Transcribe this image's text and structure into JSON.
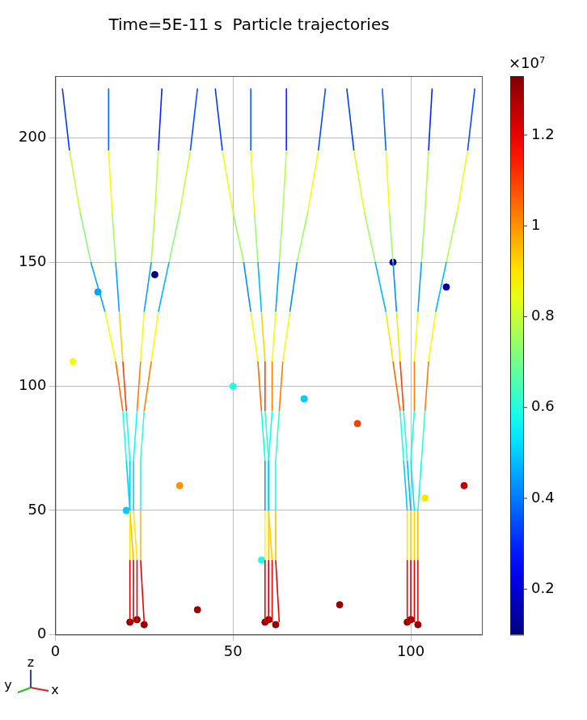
{
  "chart_data": {
    "type": "line",
    "title": "Time=5E-11 s  Particle trajectories",
    "xlim": [
      0,
      120
    ],
    "xticks": [
      0,
      50,
      100
    ],
    "ylim": [
      0,
      225
    ],
    "yticks": [
      0,
      50,
      100,
      150,
      200
    ],
    "grid": true,
    "triad": [
      "x",
      "y",
      "z"
    ],
    "series": [
      {
        "x": [
          2,
          4,
          7,
          10,
          14,
          17,
          19,
          20,
          21,
          21,
          21
        ],
        "y": [
          220,
          195,
          170,
          150,
          130,
          110,
          90,
          70,
          50,
          30,
          5
        ],
        "speed": [
          0.15,
          0.5,
          1.1,
          0.35,
          0.55,
          1.2,
          0.9,
          0.3,
          0.7,
          1.1,
          1.3
        ]
      },
      {
        "x": [
          15,
          15,
          16,
          17,
          18,
          19,
          20,
          21,
          21,
          22,
          22
        ],
        "y": [
          220,
          195,
          170,
          150,
          130,
          110,
          90,
          70,
          50,
          30,
          5
        ],
        "speed": [
          0.2,
          0.55,
          1.2,
          0.3,
          0.6,
          1.25,
          0.95,
          0.25,
          0.75,
          1.15,
          1.3
        ]
      },
      {
        "x": [
          30,
          29,
          28,
          27,
          25,
          24,
          23,
          22,
          22,
          23,
          23
        ],
        "y": [
          220,
          195,
          170,
          150,
          130,
          110,
          90,
          70,
          50,
          30,
          5
        ],
        "speed": [
          0.15,
          0.45,
          1.15,
          0.4,
          0.5,
          1.2,
          0.85,
          0.3,
          0.7,
          1.1,
          1.3
        ]
      },
      {
        "x": [
          40,
          38,
          35,
          32,
          29,
          27,
          25,
          24,
          24,
          24,
          25
        ],
        "y": [
          220,
          195,
          170,
          150,
          130,
          110,
          90,
          70,
          50,
          30,
          5
        ],
        "speed": [
          0.2,
          0.5,
          1.1,
          0.35,
          0.6,
          1.15,
          0.9,
          0.35,
          0.8,
          1.1,
          1.3
        ]
      },
      {
        "x": [
          45,
          47,
          50,
          53,
          55,
          57,
          58,
          59,
          59,
          59,
          59
        ],
        "y": [
          220,
          195,
          170,
          150,
          130,
          110,
          90,
          70,
          50,
          30,
          5
        ],
        "speed": [
          0.15,
          0.5,
          1.2,
          0.3,
          0.55,
          1.2,
          0.9,
          0.25,
          0.65,
          1.1,
          1.3
        ]
      },
      {
        "x": [
          55,
          55,
          56,
          57,
          58,
          59,
          59,
          60,
          60,
          60,
          60
        ],
        "y": [
          220,
          195,
          170,
          150,
          130,
          110,
          90,
          70,
          50,
          30,
          5
        ],
        "speed": [
          0.2,
          0.55,
          1.15,
          0.35,
          0.6,
          1.25,
          0.95,
          0.3,
          0.7,
          1.15,
          1.3
        ]
      },
      {
        "x": [
          65,
          65,
          64,
          63,
          62,
          61,
          61,
          60,
          60,
          61,
          61
        ],
        "y": [
          220,
          195,
          170,
          150,
          130,
          110,
          90,
          70,
          50,
          30,
          5
        ],
        "speed": [
          0.15,
          0.45,
          1.1,
          0.4,
          0.5,
          1.2,
          0.85,
          0.3,
          0.75,
          1.1,
          1.3
        ]
      },
      {
        "x": [
          76,
          74,
          71,
          68,
          66,
          64,
          63,
          62,
          62,
          62,
          63
        ],
        "y": [
          220,
          195,
          170,
          150,
          130,
          110,
          90,
          70,
          50,
          30,
          5
        ],
        "speed": [
          0.2,
          0.5,
          1.2,
          0.3,
          0.55,
          1.15,
          0.9,
          0.35,
          0.8,
          1.1,
          1.3
        ]
      },
      {
        "x": [
          82,
          84,
          87,
          90,
          93,
          95,
          97,
          98,
          99,
          99,
          99
        ],
        "y": [
          220,
          195,
          170,
          150,
          130,
          110,
          90,
          70,
          50,
          30,
          5
        ],
        "speed": [
          0.15,
          0.5,
          1.15,
          0.35,
          0.6,
          1.2,
          0.9,
          0.3,
          0.7,
          1.1,
          1.3
        ]
      },
      {
        "x": [
          92,
          93,
          94,
          95,
          96,
          97,
          98,
          99,
          100,
          100,
          100
        ],
        "y": [
          220,
          195,
          170,
          150,
          130,
          110,
          90,
          70,
          50,
          30,
          5
        ],
        "speed": [
          0.2,
          0.55,
          1.2,
          0.3,
          0.55,
          1.25,
          0.95,
          0.25,
          0.7,
          1.15,
          1.3
        ]
      },
      {
        "x": [
          106,
          105,
          104,
          103,
          102,
          101,
          101,
          100,
          101,
          101,
          101
        ],
        "y": [
          220,
          195,
          170,
          150,
          130,
          110,
          90,
          70,
          50,
          30,
          5
        ],
        "speed": [
          0.15,
          0.45,
          1.1,
          0.4,
          0.5,
          1.2,
          0.85,
          0.3,
          0.75,
          1.1,
          1.3
        ]
      },
      {
        "x": [
          118,
          116,
          113,
          110,
          107,
          105,
          104,
          103,
          102,
          102,
          102
        ],
        "y": [
          220,
          195,
          170,
          150,
          130,
          110,
          90,
          70,
          50,
          30,
          5
        ],
        "speed": [
          0.2,
          0.5,
          1.2,
          0.35,
          0.6,
          1.15,
          0.9,
          0.35,
          0.8,
          1.1,
          1.3
        ]
      }
    ],
    "markers": {
      "x": [
        28,
        95,
        110,
        12,
        50,
        70,
        20,
        35,
        85,
        104,
        58,
        21,
        23,
        25,
        59,
        60,
        62,
        99,
        100,
        102,
        40,
        80,
        115,
        5
      ],
      "y": [
        145,
        150,
        140,
        138,
        100,
        95,
        50,
        60,
        85,
        55,
        30,
        5,
        6,
        4,
        5,
        6,
        4,
        5,
        6,
        4,
        10,
        12,
        60,
        110
      ],
      "speed": [
        0.1,
        0.1,
        0.15,
        0.45,
        0.6,
        0.5,
        0.5,
        1.0,
        1.1,
        0.9,
        0.6,
        1.3,
        1.3,
        1.3,
        1.3,
        1.3,
        1.3,
        1.3,
        1.3,
        1.3,
        1.3,
        1.3,
        1.25,
        0.85
      ]
    },
    "colorbar": {
      "label": "×10⁷",
      "range": [
        0.1,
        1.33
      ],
      "ticks": [
        0.2,
        0.4,
        0.6,
        0.8,
        1,
        1.2
      ]
    }
  }
}
